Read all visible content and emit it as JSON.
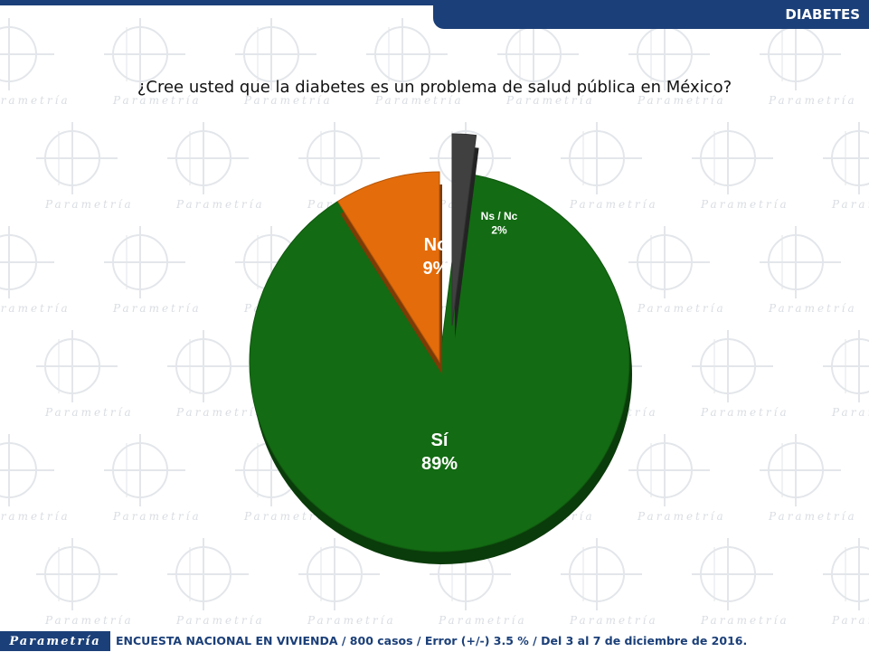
{
  "header": {
    "section": "DIABETES"
  },
  "question": "¿Cree usted que la diabetes es un problema de salud pública en México?",
  "footer": {
    "logo": "Parametría",
    "note": "ENCUESTA NACIONAL EN VIVIENDA / 800 casos / Error (+/-) 3.5 % / Del 3 al 7 de diciembre de 2016."
  },
  "watermark": {
    "text": "Parametría"
  },
  "chart_data": {
    "type": "pie",
    "title": "",
    "unit": "%",
    "slices": [
      {
        "label": "Sí",
        "value": 89,
        "display": "89%",
        "color": "#136b13"
      },
      {
        "label": "No",
        "value": 9,
        "display": "9%",
        "color": "#e46c0a"
      },
      {
        "label": "Ns / Nc",
        "value": 2,
        "display": "2%",
        "color": "#404040"
      }
    ],
    "exploded": [
      "No",
      "Ns / Nc"
    ]
  }
}
